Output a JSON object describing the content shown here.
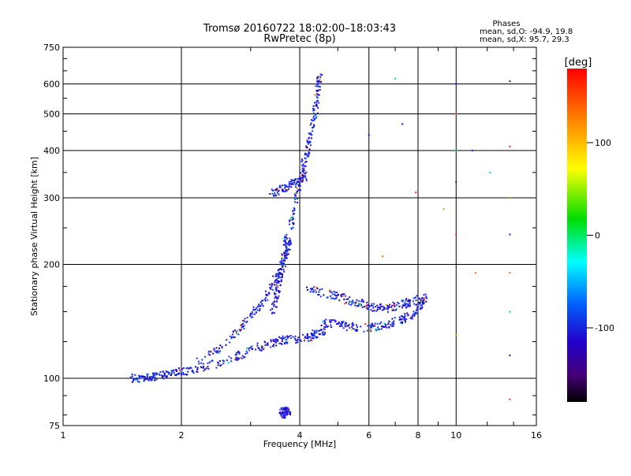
{
  "chart_data": {
    "type": "scatter",
    "title": "Tromsø 20160722 18:02:00–18:03:43",
    "subtitle": "RwPretec (8p)",
    "xlabel": "Frequency [MHz]",
    "ylabel": "Stationary phase Virtual Height [km]",
    "x_scale": "log",
    "y_scale": "log",
    "xlim": [
      1,
      16
    ],
    "ylim": [
      75,
      750
    ],
    "x_ticks": [
      1,
      2,
      4,
      6,
      8,
      10,
      16
    ],
    "x_tick_labels": [
      "1",
      "2",
      "4",
      "6",
      "8",
      "10",
      "16"
    ],
    "y_ticks": [
      75,
      100,
      200,
      300,
      400,
      500,
      600,
      750
    ],
    "y_tick_labels": [
      "75",
      "100",
      "200",
      "300",
      "400",
      "500",
      "600",
      "750"
    ],
    "grid": true,
    "phases_box": {
      "heading": "Phases",
      "line_o": "mean, sd,O: -94.9, 19.8",
      "line_x": "mean, sd,X:  95.7, 29.3"
    },
    "colorbar": {
      "label": "[deg]",
      "range": [
        -180,
        180
      ],
      "ticks": [
        100,
        0,
        -100
      ],
      "tick_labels": [
        "100",
        "0",
        "-100"
      ],
      "colormap": "rainbow"
    },
    "traces": [
      {
        "x": [
          1.5,
          1.6,
          1.7,
          1.8,
          1.9,
          2.0,
          2.2,
          2.5,
          2.8,
          3.1,
          3.4,
          3.6,
          3.9,
          4.2,
          4.4,
          4.6
        ],
        "y": [
          100,
          100,
          101,
          102,
          103,
          104,
          106,
          110,
          115,
          120,
          124,
          126,
          127,
          128,
          131,
          134
        ]
      },
      {
        "x": [
          2.2,
          2.5,
          2.8,
          3.0,
          3.2,
          3.4,
          3.6,
          3.7,
          3.8
        ],
        "y": [
          110,
          120,
          135,
          145,
          158,
          175,
          195,
          215,
          235
        ]
      },
      {
        "x": [
          3.4,
          3.5,
          3.55,
          3.6,
          3.65,
          3.7
        ],
        "y": [
          150,
          165,
          180,
          195,
          215,
          240
        ]
      },
      {
        "x": [
          3.8,
          3.9,
          4.0,
          4.1,
          4.2,
          4.3,
          4.4,
          4.45,
          4.5
        ],
        "y": [
          250,
          290,
          330,
          370,
          410,
          460,
          520,
          580,
          640
        ]
      },
      {
        "x": [
          3.4,
          3.6,
          3.8,
          4.0,
          4.2
        ],
        "y": [
          310,
          315,
          325,
          335,
          345
        ]
      },
      {
        "x": [
          4.5,
          4.9,
          5.3,
          5.8,
          6.3,
          6.8,
          7.3,
          7.8,
          8.2
        ],
        "y": [
          140,
          139,
          137,
          136,
          137,
          139,
          143,
          148,
          155
        ]
      },
      {
        "x": [
          4.2,
          4.6,
          5.0,
          5.4,
          5.8,
          6.2,
          6.6,
          7.0,
          7.5,
          8.0,
          8.4
        ],
        "y": [
          172,
          168,
          165,
          160,
          157,
          154,
          153,
          155,
          158,
          161,
          163
        ]
      },
      {
        "x": [
          3.6,
          3.65,
          3.7,
          3.75
        ],
        "y": [
          82,
          80,
          83,
          81
        ]
      },
      {
        "x": [
          6.0,
          6.5,
          7.0,
          7.3,
          7.9,
          9.3,
          10.0,
          10.0,
          10.0,
          10.0,
          10.0,
          10.0,
          11.0,
          11.2,
          12.2,
          13.7,
          13.7,
          13.7,
          13.7,
          13.7,
          13.7,
          13.7,
          13.7
        ],
        "y": [
          440,
          210,
          620,
          470,
          310,
          280,
          600,
          500,
          400,
          330,
          240,
          130,
          400,
          190,
          350,
          610,
          410,
          300,
          240,
          190,
          150,
          115,
          88
        ]
      }
    ]
  }
}
